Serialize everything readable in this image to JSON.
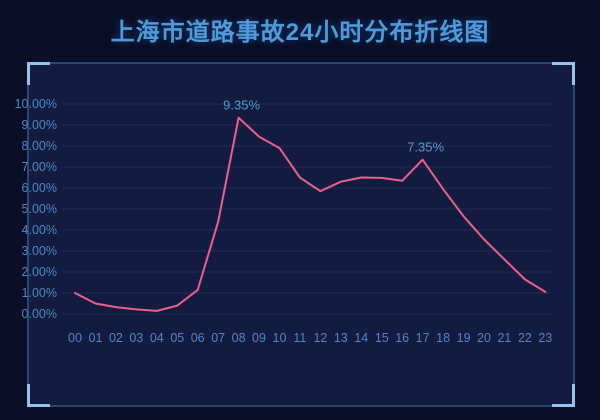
{
  "title": "上海市道路事故24小时分布折线图",
  "colors": {
    "page_bg": "#0a0e26",
    "panel_bg": "#141b40",
    "panel_border": "#2a4673",
    "corner_accent": "#93c4e9",
    "title_text": "#4f9bd9",
    "axis_text": "#4d88c4",
    "gridline": "#222b52",
    "line": "#e8618c",
    "data_label": "#4d9ccc"
  },
  "chart_data": {
    "type": "line",
    "title": "上海市道路事故24小时分布折线图",
    "x": [
      "00",
      "01",
      "02",
      "03",
      "04",
      "05",
      "06",
      "07",
      "08",
      "09",
      "10",
      "11",
      "12",
      "13",
      "14",
      "15",
      "16",
      "17",
      "18",
      "19",
      "20",
      "21",
      "22",
      "23"
    ],
    "values": [
      1.0,
      0.5,
      0.33,
      0.22,
      0.15,
      0.4,
      1.15,
      4.4,
      9.35,
      8.45,
      7.9,
      6.5,
      5.85,
      6.3,
      6.5,
      6.48,
      6.35,
      7.35,
      5.95,
      4.65,
      3.55,
      2.6,
      1.65,
      1.05
    ],
    "y_ticks": [
      "0.00%",
      "1.00%",
      "2.00%",
      "3.00%",
      "4.00%",
      "5.00%",
      "6.00%",
      "7.00%",
      "8.00%",
      "9.00%",
      "10.00%"
    ],
    "ylim": [
      0,
      10
    ],
    "xlabel": "",
    "ylabel": "",
    "grid": "horizontal-only",
    "legend": "none",
    "annotations": [
      {
        "x": "08",
        "label": "9.35%"
      },
      {
        "x": "17",
        "label": "7.35%"
      }
    ]
  }
}
